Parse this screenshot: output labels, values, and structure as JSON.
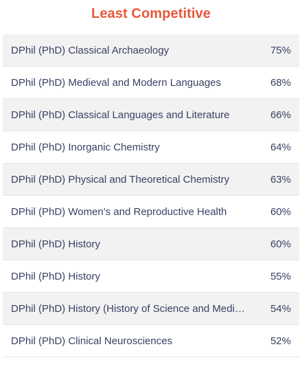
{
  "title": "Least Competitive",
  "rows": [
    {
      "name": "DPhil (PhD) Classical Archaeology",
      "percent": "75%"
    },
    {
      "name": "DPhil (PhD) Medieval and Modern Languages",
      "percent": "68%"
    },
    {
      "name": "DPhil (PhD) Classical Languages and Literature",
      "percent": "66%"
    },
    {
      "name": "DPhil (PhD) Inorganic Chemistry",
      "percent": "64%"
    },
    {
      "name": "DPhil (PhD) Physical and Theoretical Chemistry",
      "percent": "63%"
    },
    {
      "name": "DPhil (PhD) Women's and Reproductive Health",
      "percent": "60%"
    },
    {
      "name": "DPhil (PhD) History",
      "percent": "60%"
    },
    {
      "name": "DPhil (PhD) History",
      "percent": "55%"
    },
    {
      "name": "DPhil (PhD) History (History of Science and Medici...",
      "percent": "54%"
    },
    {
      "name": "DPhil (PhD) Clinical Neurosciences",
      "percent": "52%"
    }
  ]
}
